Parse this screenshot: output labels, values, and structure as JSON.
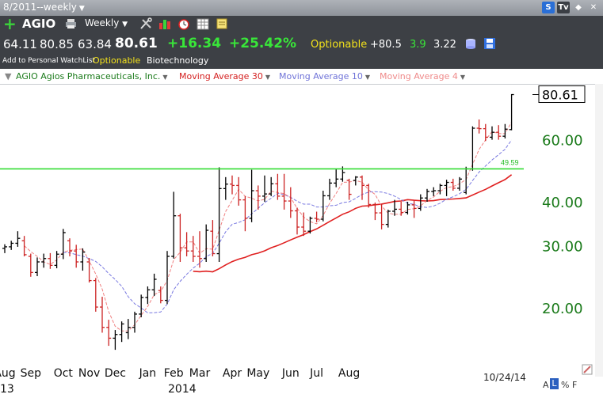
{
  "window": {
    "title": "8/2011--weekly"
  },
  "window_buttons": {
    "s": "S",
    "tv": "Tv"
  },
  "toolbar": {
    "symbol": "AGIO",
    "period": "Weekly",
    "add_watchlist": "Add to Personal WatchList",
    "optionable": "Optionable",
    "industry": "Biotechnology"
  },
  "quote": {
    "open": "64.11",
    "high": "80.85",
    "low": "63.84",
    "last": "80.61",
    "change": "+16.34",
    "change_pct": "+25.42%",
    "optionable": "Optionable",
    "v1": "+80.5",
    "v2": "3.9",
    "v3": "3.22"
  },
  "legend": {
    "company": "AGIO Agios Pharmaceuticals, Inc.",
    "ma30": "Moving Average 30",
    "ma10": "Moving Average 10",
    "ma4": "Moving Average 4"
  },
  "bottom": {
    "a": "A",
    "l": "L",
    "pct": "%",
    "f": "F"
  },
  "colors": {
    "up_bar": "#000000",
    "down_bar": "#cc2222",
    "ma30": "#e02020",
    "ma10": "#7878e0",
    "ma4": "#f08080",
    "resistance": "#33dd33",
    "axis_label": "#1a7a1a"
  },
  "chart_data": {
    "type": "ohlc",
    "scale": "log",
    "ylim": [
      14,
      86
    ],
    "yticks": [
      20,
      30,
      40,
      60
    ],
    "ytick_labels": [
      "20.00",
      "30.00",
      "40.00",
      "60.00"
    ],
    "last_price_label": "80.61",
    "last_price": 80.61,
    "resistance": {
      "value": 49.59,
      "label": "49.59"
    },
    "month_labels": [
      "Aug",
      "Sep",
      "Oct",
      "Nov",
      "Dec",
      "Jan",
      "Feb",
      "Mar",
      "Apr",
      "May",
      "Jun",
      "Jul",
      "Aug"
    ],
    "year_labels": [
      "13",
      "2014"
    ],
    "date_label": "10/24/14",
    "bars": [
      {
        "o": 29.5,
        "h": 30.3,
        "l": 28.6,
        "c": 29.8
      },
      {
        "o": 29.8,
        "h": 31.0,
        "l": 29.2,
        "c": 30.5
      },
      {
        "o": 30.5,
        "h": 33.0,
        "l": 29.8,
        "c": 31.5
      },
      {
        "o": 31.0,
        "h": 32.0,
        "l": 28.0,
        "c": 28.3
      },
      {
        "o": 28.0,
        "h": 28.5,
        "l": 24.5,
        "c": 25.2
      },
      {
        "o": 25.2,
        "h": 27.8,
        "l": 24.6,
        "c": 27.0
      },
      {
        "o": 27.0,
        "h": 28.5,
        "l": 26.0,
        "c": 27.6
      },
      {
        "o": 27.6,
        "h": 28.6,
        "l": 25.8,
        "c": 26.4
      },
      {
        "o": 26.4,
        "h": 29.0,
        "l": 25.9,
        "c": 28.4
      },
      {
        "o": 28.4,
        "h": 33.5,
        "l": 27.5,
        "c": 32.7
      },
      {
        "o": 31.0,
        "h": 31.5,
        "l": 28.0,
        "c": 29.0
      },
      {
        "o": 29.0,
        "h": 30.2,
        "l": 26.0,
        "c": 27.0
      },
      {
        "o": 27.0,
        "h": 29.5,
        "l": 25.5,
        "c": 28.8
      },
      {
        "o": 27.0,
        "h": 27.7,
        "l": 23.6,
        "c": 23.9
      },
      {
        "o": 23.9,
        "h": 24.3,
        "l": 19.5,
        "c": 20.1
      },
      {
        "o": 20.1,
        "h": 21.5,
        "l": 17.0,
        "c": 17.6
      },
      {
        "o": 17.6,
        "h": 18.5,
        "l": 15.6,
        "c": 16.4
      },
      {
        "o": 16.4,
        "h": 17.3,
        "l": 15.2,
        "c": 16.8
      },
      {
        "o": 16.8,
        "h": 18.3,
        "l": 16.0,
        "c": 18.0
      },
      {
        "o": 17.0,
        "h": 18.6,
        "l": 16.3,
        "c": 17.6
      },
      {
        "o": 17.6,
        "h": 19.5,
        "l": 17.0,
        "c": 19.2
      },
      {
        "o": 19.2,
        "h": 21.8,
        "l": 18.8,
        "c": 21.4
      },
      {
        "o": 21.4,
        "h": 23.0,
        "l": 20.5,
        "c": 22.5
      },
      {
        "o": 22.5,
        "h": 25.0,
        "l": 21.6,
        "c": 24.1
      },
      {
        "o": 22.4,
        "h": 23.0,
        "l": 20.6,
        "c": 21.0
      },
      {
        "o": 21.0,
        "h": 29.0,
        "l": 20.5,
        "c": 28.0
      },
      {
        "o": 28.0,
        "h": 42.7,
        "l": 27.6,
        "c": 36.5
      },
      {
        "o": 36.5,
        "h": 37.0,
        "l": 27.0,
        "c": 29.6
      },
      {
        "o": 29.6,
        "h": 32.8,
        "l": 28.0,
        "c": 29.0
      },
      {
        "o": 29.0,
        "h": 32.0,
        "l": 27.0,
        "c": 28.0
      },
      {
        "o": 28.0,
        "h": 33.0,
        "l": 26.0,
        "c": 27.6
      },
      {
        "o": 27.6,
        "h": 34.5,
        "l": 27.0,
        "c": 33.2
      },
      {
        "o": 33.0,
        "h": 35.5,
        "l": 28.0,
        "c": 28.5
      },
      {
        "o": 28.5,
        "h": 50.1,
        "l": 27.0,
        "c": 43.6
      },
      {
        "o": 43.6,
        "h": 47.0,
        "l": 40.5,
        "c": 44.9
      },
      {
        "o": 44.9,
        "h": 47.5,
        "l": 42.0,
        "c": 44.5
      },
      {
        "o": 44.5,
        "h": 47.0,
        "l": 39.0,
        "c": 40.5
      },
      {
        "o": 40.5,
        "h": 41.5,
        "l": 33.0,
        "c": 35.9
      },
      {
        "o": 35.9,
        "h": 49.3,
        "l": 35.0,
        "c": 43.0
      },
      {
        "o": 43.0,
        "h": 44.5,
        "l": 38.0,
        "c": 41.5
      },
      {
        "o": 41.5,
        "h": 47.5,
        "l": 40.0,
        "c": 42.1
      },
      {
        "o": 42.1,
        "h": 47.0,
        "l": 41.5,
        "c": 45.0
      },
      {
        "o": 45.0,
        "h": 48.0,
        "l": 40.5,
        "c": 41.5
      },
      {
        "o": 41.5,
        "h": 48.0,
        "l": 38.0,
        "c": 40.2
      },
      {
        "o": 40.2,
        "h": 44.0,
        "l": 36.0,
        "c": 37.7
      },
      {
        "o": 37.7,
        "h": 38.5,
        "l": 32.3,
        "c": 33.9
      },
      {
        "o": 33.9,
        "h": 37.3,
        "l": 32.0,
        "c": 33.0
      },
      {
        "o": 33.0,
        "h": 36.3,
        "l": 32.5,
        "c": 35.9
      },
      {
        "o": 35.9,
        "h": 37.5,
        "l": 35.0,
        "c": 35.7
      },
      {
        "o": 35.7,
        "h": 43.0,
        "l": 35.2,
        "c": 41.6
      },
      {
        "o": 41.6,
        "h": 46.5,
        "l": 40.5,
        "c": 45.2
      },
      {
        "o": 45.2,
        "h": 49.5,
        "l": 44.0,
        "c": 46.4
      },
      {
        "o": 46.4,
        "h": 50.4,
        "l": 45.6,
        "c": 48.4
      },
      {
        "o": 46.0,
        "h": 46.5,
        "l": 40.5,
        "c": 42.0
      },
      {
        "o": 46.0,
        "h": 47.3,
        "l": 44.5,
        "c": 47.0
      },
      {
        "o": 47.0,
        "h": 47.5,
        "l": 40.5,
        "c": 44.5
      },
      {
        "o": 44.5,
        "h": 45.0,
        "l": 38.5,
        "c": 39.3
      },
      {
        "o": 39.3,
        "h": 39.8,
        "l": 35.5,
        "c": 37.2
      },
      {
        "o": 37.2,
        "h": 39.5,
        "l": 33.4,
        "c": 34.5
      },
      {
        "o": 34.5,
        "h": 38.0,
        "l": 33.8,
        "c": 37.6
      },
      {
        "o": 37.6,
        "h": 40.5,
        "l": 36.5,
        "c": 38.1
      },
      {
        "o": 38.1,
        "h": 40.0,
        "l": 36.5,
        "c": 37.3
      },
      {
        "o": 37.3,
        "h": 40.0,
        "l": 36.8,
        "c": 39.2
      },
      {
        "o": 39.2,
        "h": 40.3,
        "l": 36.0,
        "c": 38.3
      },
      {
        "o": 38.3,
        "h": 42.0,
        "l": 37.7,
        "c": 41.0
      },
      {
        "o": 41.0,
        "h": 43.5,
        "l": 40.0,
        "c": 42.8
      },
      {
        "o": 42.8,
        "h": 44.0,
        "l": 41.5,
        "c": 43.0
      },
      {
        "o": 43.0,
        "h": 45.0,
        "l": 42.0,
        "c": 44.5
      },
      {
        "o": 44.5,
        "h": 46.2,
        "l": 41.5,
        "c": 45.4
      },
      {
        "o": 45.4,
        "h": 46.5,
        "l": 43.0,
        "c": 43.7
      },
      {
        "o": 43.7,
        "h": 47.0,
        "l": 43.0,
        "c": 46.4
      },
      {
        "o": 42.5,
        "h": 50.3,
        "l": 42.0,
        "c": 49.6
      },
      {
        "o": 49.6,
        "h": 65.5,
        "l": 49.0,
        "c": 64.7
      },
      {
        "o": 64.7,
        "h": 68.5,
        "l": 62.5,
        "c": 64.5
      },
      {
        "o": 64.5,
        "h": 66.5,
        "l": 59.5,
        "c": 61.0
      },
      {
        "o": 61.0,
        "h": 65.5,
        "l": 60.0,
        "c": 63.0
      },
      {
        "o": 63.0,
        "h": 66.0,
        "l": 60.0,
        "c": 61.4
      },
      {
        "o": 61.4,
        "h": 66.5,
        "l": 60.5,
        "c": 64.3
      },
      {
        "o": 64.11,
        "h": 80.85,
        "l": 63.84,
        "c": 80.61
      }
    ]
  }
}
